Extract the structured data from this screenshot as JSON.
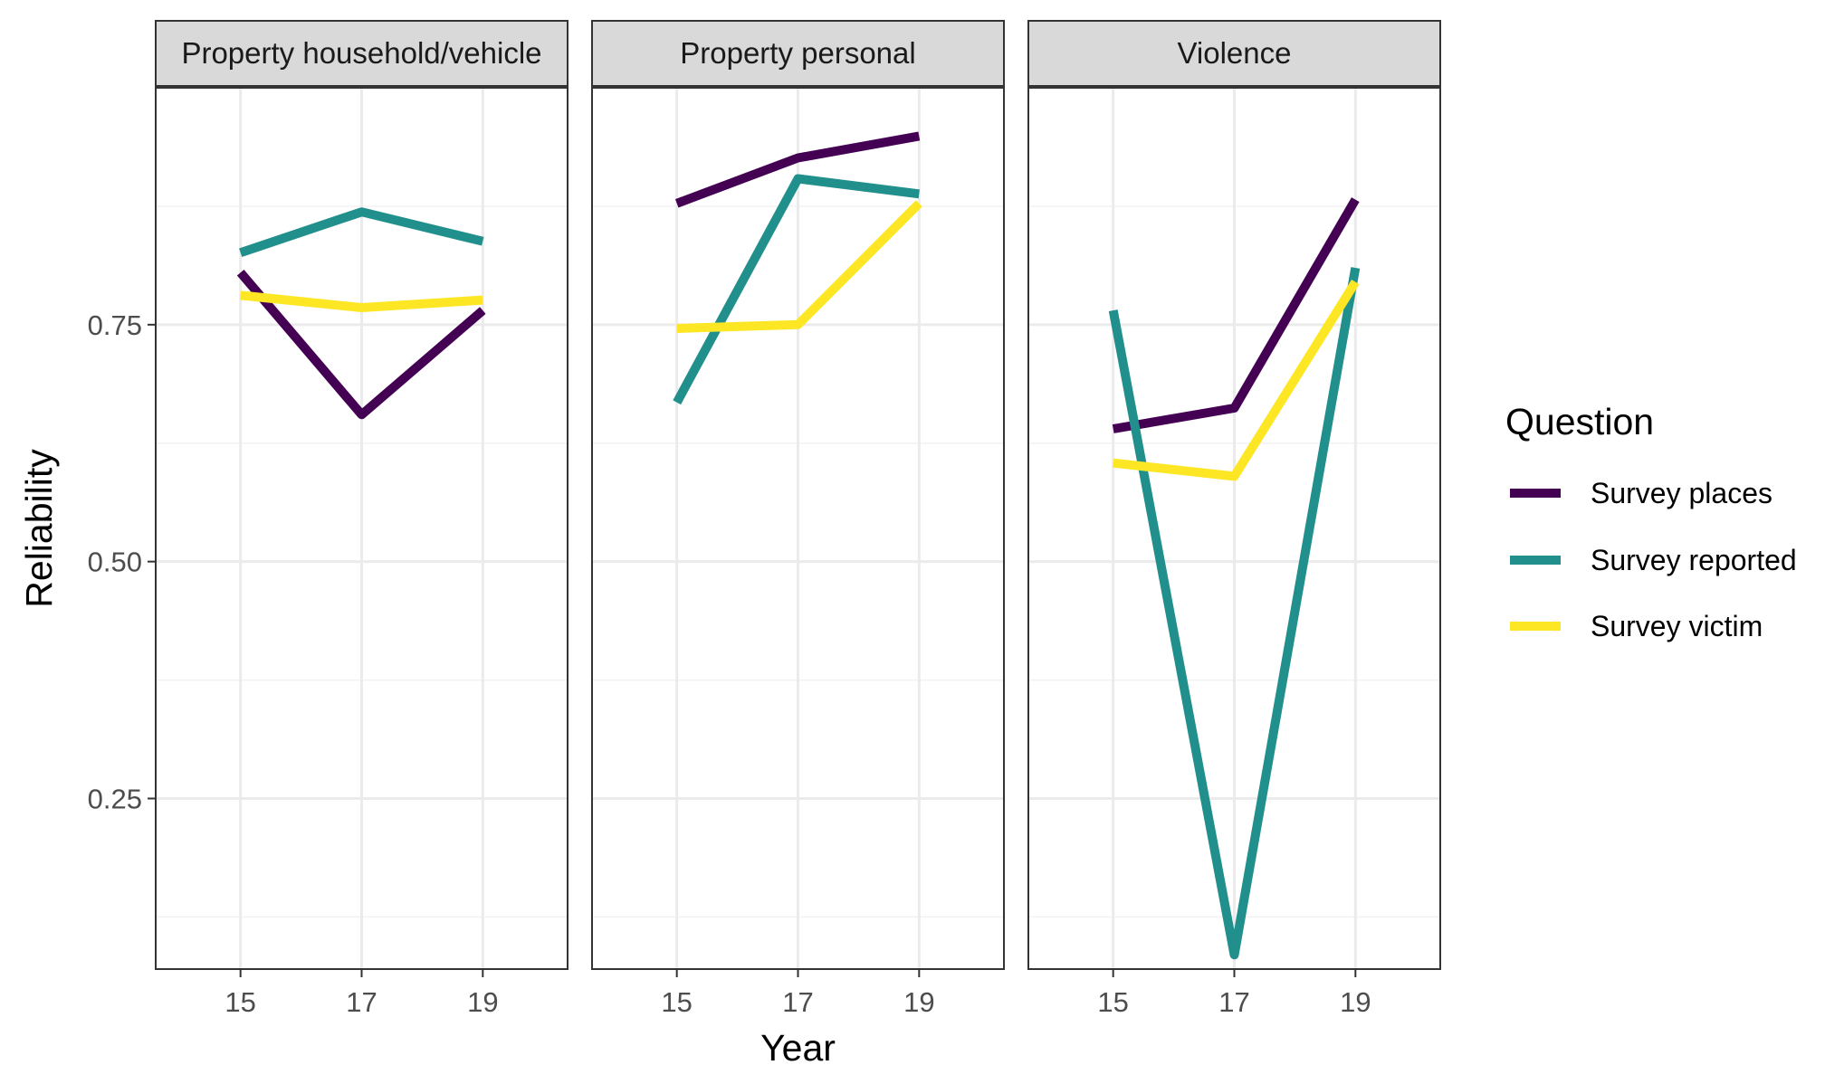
{
  "chart_data": {
    "type": "line",
    "xlabel": "Year",
    "ylabel": "Reliability",
    "x": [
      15,
      17,
      19
    ],
    "x_ticks": [
      "15",
      "17",
      "19"
    ],
    "xlim": [
      13.6,
      20.4
    ],
    "ylim": [
      0.07,
      1.0
    ],
    "y_ticks": [
      0.25,
      0.5,
      0.75
    ],
    "y_tick_labels": [
      "0.25",
      "0.50",
      "0.75"
    ],
    "y_minor_ticks": [
      0.125,
      0.375,
      0.625,
      0.875
    ],
    "grid": true,
    "legend": {
      "title": "Question",
      "position": "right",
      "entries": [
        "Survey places",
        "Survey reported",
        "Survey victim"
      ]
    },
    "colors": {
      "Survey places": "#440154",
      "Survey reported": "#21908C",
      "Survey victim": "#FDE725"
    },
    "facets": [
      {
        "label": "Property household/vehicle",
        "series": [
          {
            "name": "Survey places",
            "values": [
              0.805,
              0.655,
              0.765
            ]
          },
          {
            "name": "Survey reported",
            "values": [
              0.826,
              0.869,
              0.838
            ]
          },
          {
            "name": "Survey victim",
            "values": [
              0.781,
              0.768,
              0.776
            ]
          }
        ]
      },
      {
        "label": "Property personal",
        "series": [
          {
            "name": "Survey places",
            "values": [
              0.878,
              0.926,
              0.949
            ]
          },
          {
            "name": "Survey reported",
            "values": [
              0.668,
              0.904,
              0.888
            ]
          },
          {
            "name": "Survey victim",
            "values": [
              0.746,
              0.75,
              0.878
            ]
          }
        ]
      },
      {
        "label": "Violence",
        "series": [
          {
            "name": "Survey places",
            "values": [
              0.64,
              0.662,
              0.882
            ]
          },
          {
            "name": "Survey reported",
            "values": [
              0.765,
              0.085,
              0.81
            ]
          },
          {
            "name": "Survey victim",
            "values": [
              0.604,
              0.59,
              0.795
            ]
          }
        ]
      }
    ]
  }
}
